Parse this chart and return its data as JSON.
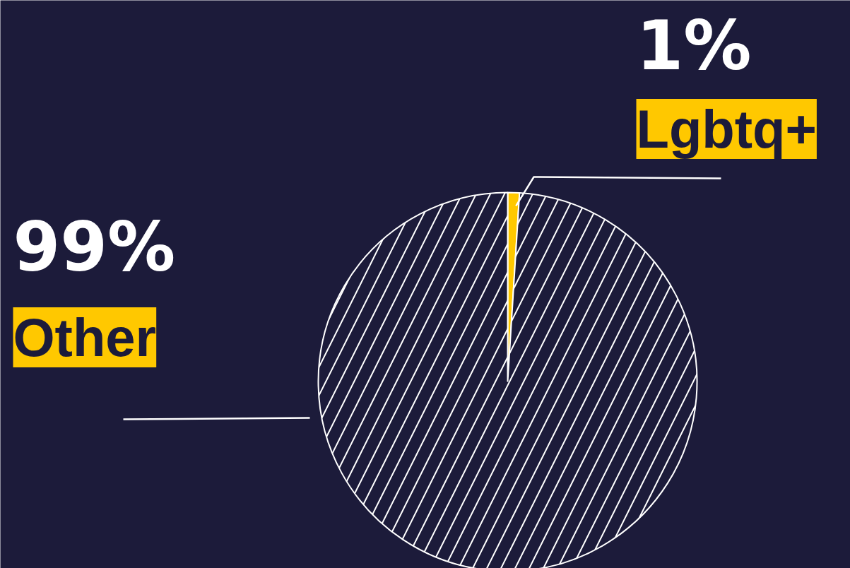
{
  "chart_data": {
    "type": "pie",
    "categories": [
      "Lgbtq+",
      "Other"
    ],
    "values": [
      1,
      99
    ],
    "colors": [
      "#ffc800",
      "#1c1b3a"
    ],
    "value_labels": [
      "1%",
      "99%"
    ]
  }
}
